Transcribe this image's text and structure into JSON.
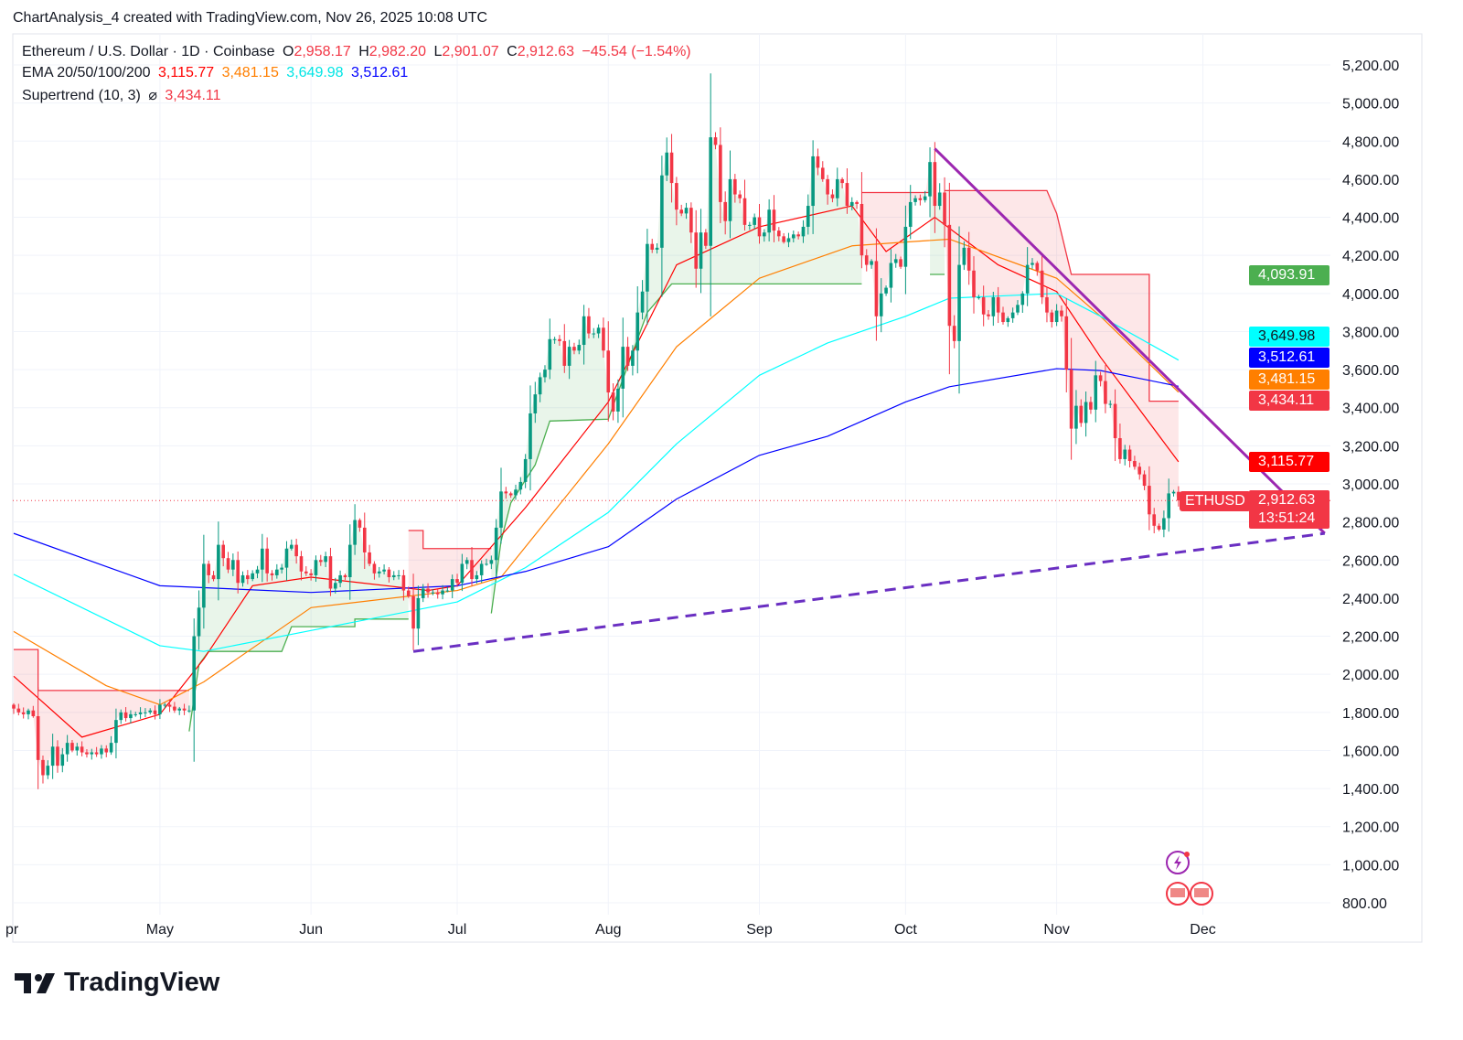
{
  "header": {
    "caption": "ChartAnalysis_4 created with TradingView.com, Nov 26, 2025 10:08 UTC"
  },
  "legend": {
    "symbol": "Ethereum / U.S. Dollar · 1D · Coinbase",
    "o_label": "O",
    "o": "2,958.17",
    "h_label": "H",
    "h": "2,982.20",
    "l_label": "L",
    "l": "2,901.07",
    "c_label": "C",
    "c": "2,912.63",
    "change": "−45.54 (−1.54%)",
    "ema_label": "EMA 20/50/100/200",
    "ema20": "3,115.77",
    "ema50": "3,481.15",
    "ema100": "3,649.98",
    "ema200": "3,512.61",
    "st_label": "Supertrend (10, 3)",
    "st_symbol": "⌀",
    "st": "3,434.11"
  },
  "price_labels": {
    "st_up": "4,093.91",
    "ema100": "3,649.98",
    "ema200": "3,512.61",
    "ema50": "3,481.15",
    "st": "3,434.11",
    "ema20": "3,115.77",
    "symbol": "ETHUSD",
    "last": "2,912.63",
    "countdown": "13:51:24"
  },
  "colors": {
    "up": "#089981",
    "down": "#f23645",
    "ema20": "#ff0000",
    "ema50": "#ff7f00",
    "ema100": "#00ffff",
    "ema200": "#0000ff",
    "trend": "#9c27b0",
    "st_up": "#4caf50",
    "st_down": "#f23645"
  },
  "logo": "TradingView",
  "chart_data": {
    "type": "candlestick",
    "title": "Ethereum / U.S. Dollar · 1D · Coinbase",
    "start_date": "2025-04-01",
    "ylim": [
      800,
      5200
    ],
    "y_ticks": [
      "800.00",
      "1,000.00",
      "1,200.00",
      "1,400.00",
      "1,600.00",
      "1,800.00",
      "2,000.00",
      "2,200.00",
      "2,400.00",
      "2,600.00",
      "2,800.00",
      "3,000.00",
      "3,200.00",
      "3,400.00",
      "3,600.00",
      "3,800.00",
      "4,000.00",
      "4,200.00",
      "4,400.00",
      "4,600.00",
      "4,800.00",
      "5,000.00",
      "5,200.00"
    ],
    "x_ticks": [
      {
        "label": "pr",
        "day": -2
      },
      {
        "label": "May",
        "day": 30
      },
      {
        "label": "Jun",
        "day": 61
      },
      {
        "label": "Jul",
        "day": 91
      },
      {
        "label": "Aug",
        "day": 122
      },
      {
        "label": "Sep",
        "day": 153
      },
      {
        "label": "Oct",
        "day": 183
      },
      {
        "label": "Nov",
        "day": 214
      },
      {
        "label": "Dec",
        "day": 244
      }
    ],
    "closes": [
      1820,
      1800,
      1790,
      1810,
      1780,
      1550,
      1470,
      1520,
      1620,
      1520,
      1580,
      1640,
      1600,
      1620,
      1590,
      1580,
      1590,
      1580,
      1610,
      1590,
      1640,
      1760,
      1800,
      1770,
      1790,
      1790,
      1800,
      1800,
      1810,
      1790,
      1840,
      1840,
      1830,
      1810,
      1820,
      1810,
      1810,
      2200,
      2350,
      2580,
      2520,
      2500,
      2680,
      2610,
      2550,
      2600,
      2480,
      2520,
      2500,
      2530,
      2550,
      2660,
      2530,
      2520,
      2550,
      2560,
      2660,
      2680,
      2620,
      2540,
      2530,
      2520,
      2600,
      2590,
      2620,
      2450,
      2480,
      2520,
      2510,
      2680,
      2810,
      2770,
      2640,
      2580,
      2530,
      2540,
      2550,
      2510,
      2520,
      2520,
      2440,
      2410,
      2240,
      2400,
      2450,
      2430,
      2430,
      2420,
      2440,
      2440,
      2500,
      2480,
      2580,
      2600,
      2500,
      2520,
      2580,
      2580,
      2600,
      2770,
      2960,
      2950,
      2940,
      2970,
      3010,
      3130,
      3370,
      3470,
      3560,
      3600,
      3760,
      3760,
      3750,
      3620,
      3720,
      3700,
      3730,
      3880,
      3790,
      3790,
      3820,
      3700,
      3480,
      3380,
      3500,
      3720,
      3620,
      3700,
      3900,
      4010,
      4260,
      4230,
      4240,
      4620,
      4740,
      4580,
      4440,
      4420,
      4450,
      4320,
      4130,
      4320,
      4250,
      4820,
      4780,
      4480,
      4380,
      4600,
      4520,
      4500,
      4360,
      4360,
      4400,
      4300,
      4320,
      4440,
      4330,
      4300,
      4270,
      4290,
      4310,
      4300,
      4350,
      4460,
      4720,
      4660,
      4600,
      4520,
      4500,
      4600,
      4580,
      4460,
      4480,
      4470,
      4200,
      4150,
      4170,
      3880,
      4000,
      4030,
      4160,
      4180,
      4140,
      4350,
      4480,
      4500,
      4490,
      4510,
      4690,
      4460,
      4530,
      4360,
      3830,
      3750,
      4150,
      4240,
      4120,
      3980,
      3980,
      3890,
      3880,
      3980,
      3900,
      3850,
      3870,
      3900,
      3940,
      4000,
      4150,
      4160,
      4120,
      3980,
      3900,
      3850,
      3910,
      3880,
      3600,
      3290,
      3410,
      3320,
      3430,
      3390,
      3570,
      3540,
      3420,
      3420,
      3240,
      3130,
      3180,
      3120,
      3090,
      3050,
      2990,
      2840,
      2780,
      2760,
      2820,
      2950,
      2958.17,
      2912.63
    ],
    "last_price": 2912.63,
    "ema": [
      {
        "name": "EMA 20",
        "points": [
          [
            0,
            1990
          ],
          [
            14,
            1670
          ],
          [
            24,
            1745
          ],
          [
            30,
            1790
          ],
          [
            39,
            2080
          ],
          [
            49,
            2465
          ],
          [
            61,
            2510
          ],
          [
            85,
            2440
          ],
          [
            91,
            2465
          ],
          [
            105,
            2875
          ],
          [
            122,
            3430
          ],
          [
            136,
            4150
          ],
          [
            153,
            4350
          ],
          [
            172,
            4460
          ],
          [
            179,
            4220
          ],
          [
            189,
            4400
          ],
          [
            202,
            4150
          ],
          [
            214,
            4010
          ],
          [
            223,
            3665
          ],
          [
            239,
            3115.77
          ]
        ]
      },
      {
        "name": "EMA 50",
        "points": [
          [
            0,
            2225
          ],
          [
            19,
            1940
          ],
          [
            30,
            1840
          ],
          [
            39,
            1960
          ],
          [
            61,
            2350
          ],
          [
            91,
            2440
          ],
          [
            100,
            2510
          ],
          [
            122,
            3210
          ],
          [
            136,
            3720
          ],
          [
            153,
            4080
          ],
          [
            172,
            4250
          ],
          [
            183,
            4270
          ],
          [
            192,
            4285
          ],
          [
            214,
            4080
          ],
          [
            223,
            3880
          ],
          [
            239,
            3481.15
          ]
        ]
      },
      {
        "name": "EMA 100",
        "points": [
          [
            0,
            2525
          ],
          [
            30,
            2150
          ],
          [
            39,
            2120
          ],
          [
            61,
            2230
          ],
          [
            91,
            2380
          ],
          [
            105,
            2560
          ],
          [
            122,
            2850
          ],
          [
            136,
            3210
          ],
          [
            153,
            3570
          ],
          [
            167,
            3740
          ],
          [
            183,
            3880
          ],
          [
            192,
            3975
          ],
          [
            214,
            4000
          ],
          [
            223,
            3880
          ],
          [
            239,
            3649.98
          ]
        ]
      },
      {
        "name": "EMA 200",
        "points": [
          [
            0,
            2740
          ],
          [
            30,
            2465
          ],
          [
            61,
            2430
          ],
          [
            91,
            2465
          ],
          [
            105,
            2540
          ],
          [
            122,
            2670
          ],
          [
            136,
            2920
          ],
          [
            153,
            3150
          ],
          [
            167,
            3250
          ],
          [
            183,
            3430
          ],
          [
            192,
            3510
          ],
          [
            214,
            3605
          ],
          [
            223,
            3595
          ],
          [
            239,
            3512.61
          ]
        ]
      }
    ],
    "supertrend": [
      {
        "trend": "down",
        "points": [
          [
            0,
            2130
          ],
          [
            5,
            2130
          ],
          [
            5,
            1915
          ],
          [
            36,
            1915
          ]
        ]
      },
      {
        "trend": "up",
        "points": [
          [
            36,
            1700
          ],
          [
            38,
            2050
          ],
          [
            40,
            2120
          ],
          [
            55,
            2120
          ],
          [
            57,
            2250
          ],
          [
            70,
            2250
          ],
          [
            70,
            2290
          ],
          [
            81,
            2290
          ]
        ]
      },
      {
        "trend": "down",
        "points": [
          [
            81,
            2755
          ],
          [
            84,
            2755
          ],
          [
            84,
            2660
          ],
          [
            98,
            2660
          ]
        ]
      },
      {
        "trend": "up",
        "points": [
          [
            98,
            2320
          ],
          [
            100,
            2700
          ],
          [
            102,
            2900
          ],
          [
            107,
            3100
          ],
          [
            110,
            3330
          ],
          [
            122,
            3340
          ],
          [
            130,
            3900
          ],
          [
            135,
            4050
          ],
          [
            174,
            4050
          ]
        ]
      },
      {
        "trend": "down",
        "points": [
          [
            174,
            4530
          ],
          [
            188,
            4530
          ]
        ]
      },
      {
        "trend": "up",
        "points": [
          [
            188,
            4100
          ],
          [
            191,
            4100
          ]
        ]
      },
      {
        "trend": "down",
        "points": [
          [
            191,
            4540
          ],
          [
            212,
            4540
          ],
          [
            214,
            4420
          ],
          [
            217,
            4100
          ],
          [
            233,
            4100
          ],
          [
            233,
            3434.11
          ],
          [
            239,
            3434.11
          ]
        ]
      }
    ],
    "trendlines": [
      {
        "style": "solid",
        "from": [
          189,
          4760
        ],
        "to": [
          269,
          2740
        ]
      },
      {
        "style": "dashed",
        "from": [
          82,
          2120
        ],
        "to": [
          269,
          2740
        ]
      }
    ]
  }
}
